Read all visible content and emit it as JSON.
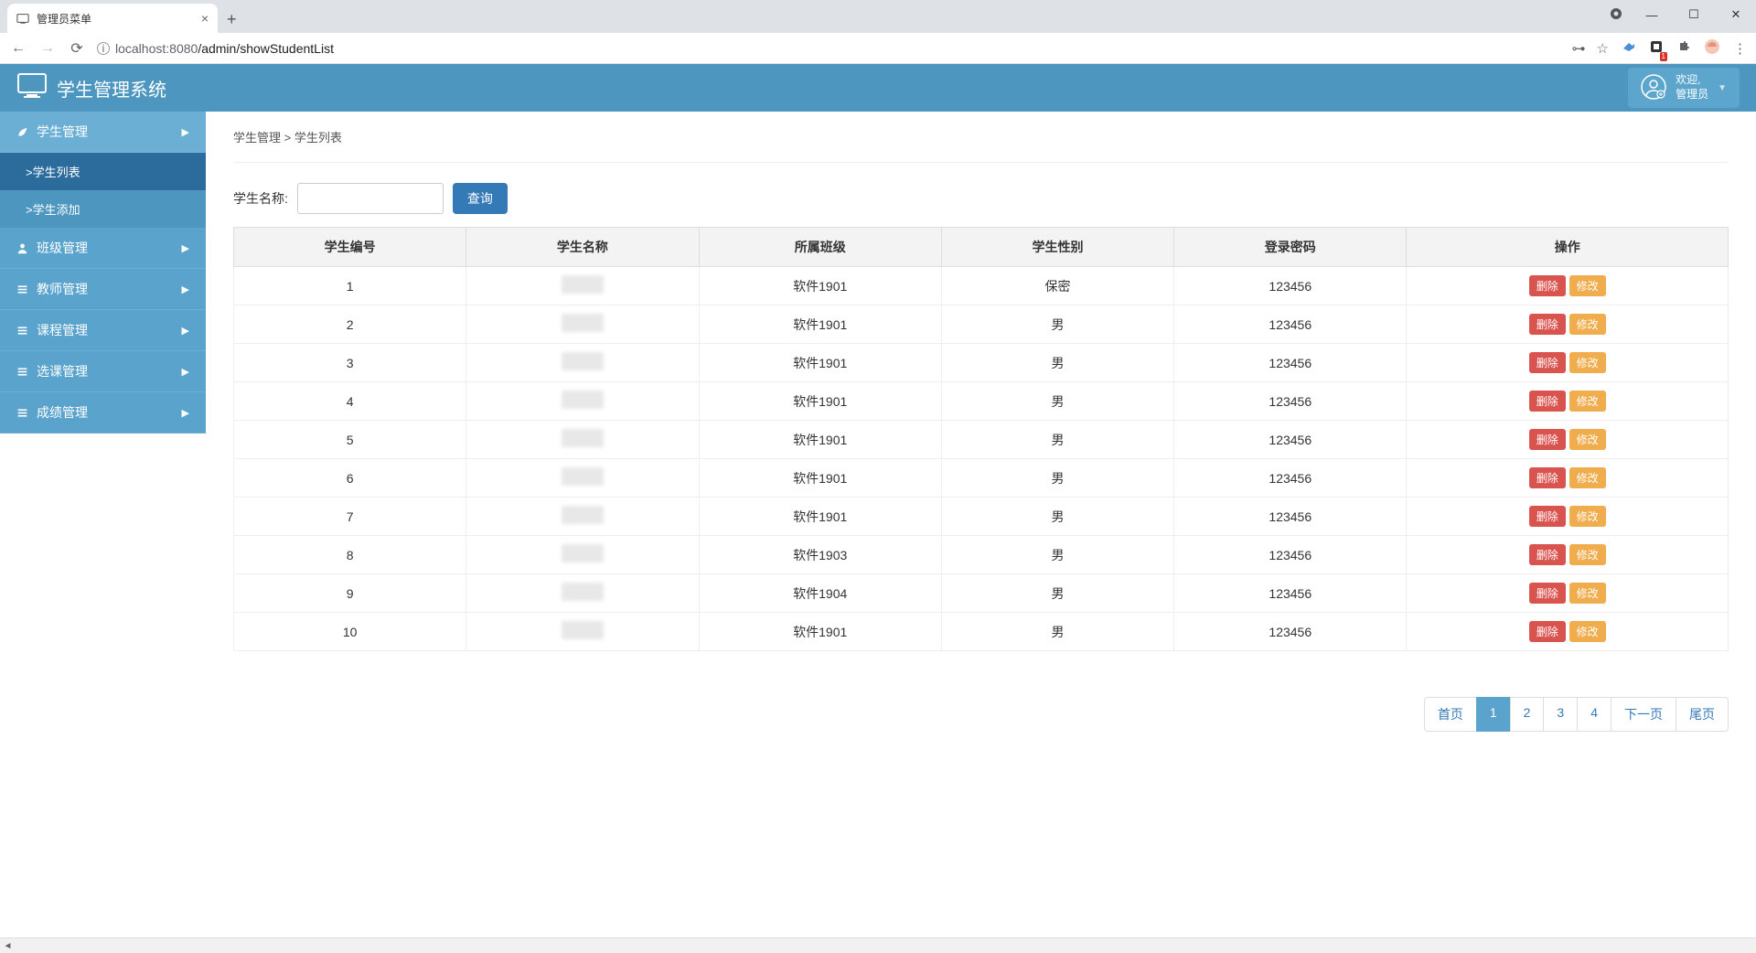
{
  "browser": {
    "tab_title": "管理员菜单",
    "url_host": "localhost",
    "url_port": ":8080",
    "url_path": "/admin/showStudentList"
  },
  "header": {
    "app_title": "学生管理系统",
    "welcome": "欢迎,",
    "user_role": "管理员"
  },
  "sidebar": {
    "items": [
      {
        "label": "学生管理",
        "expanded": true,
        "icon": "leaf"
      },
      {
        "label": "班级管理",
        "expanded": false,
        "icon": "user"
      },
      {
        "label": "教师管理",
        "expanded": false,
        "icon": "list"
      },
      {
        "label": "课程管理",
        "expanded": false,
        "icon": "list"
      },
      {
        "label": "选课管理",
        "expanded": false,
        "icon": "list"
      },
      {
        "label": "成绩管理",
        "expanded": false,
        "icon": "list"
      }
    ],
    "sub_items": [
      {
        "label": ">学生列表",
        "active": true
      },
      {
        "label": ">学生添加",
        "active": false
      }
    ]
  },
  "breadcrumb": {
    "parent": "学生管理",
    "sep": " > ",
    "current": "学生列表"
  },
  "search": {
    "label": "学生名称:",
    "button": "查询"
  },
  "table": {
    "columns": [
      "学生编号",
      "学生名称",
      "所属班级",
      "学生性别",
      "登录密码",
      "操作"
    ],
    "action_delete": "删除",
    "action_edit": "修改",
    "rows": [
      {
        "id": "1",
        "name": "",
        "class": "软件1901",
        "gender": "保密",
        "password": "123456"
      },
      {
        "id": "2",
        "name": "",
        "class": "软件1901",
        "gender": "男",
        "password": "123456"
      },
      {
        "id": "3",
        "name": "",
        "class": "软件1901",
        "gender": "男",
        "password": "123456"
      },
      {
        "id": "4",
        "name": "",
        "class": "软件1901",
        "gender": "男",
        "password": "123456"
      },
      {
        "id": "5",
        "name": "",
        "class": "软件1901",
        "gender": "男",
        "password": "123456"
      },
      {
        "id": "6",
        "name": "",
        "class": "软件1901",
        "gender": "男",
        "password": "123456"
      },
      {
        "id": "7",
        "name": "",
        "class": "软件1901",
        "gender": "男",
        "password": "123456"
      },
      {
        "id": "8",
        "name": "",
        "class": "软件1903",
        "gender": "男",
        "password": "123456"
      },
      {
        "id": "9",
        "name": "",
        "class": "软件1904",
        "gender": "男",
        "password": "123456"
      },
      {
        "id": "10",
        "name": "",
        "class": "软件1901",
        "gender": "男",
        "password": "123456"
      }
    ]
  },
  "pagination": {
    "first": "首页",
    "pages": [
      "1",
      "2",
      "3",
      "4"
    ],
    "active_index": 0,
    "next": "下一页",
    "last": "尾页"
  },
  "colors": {
    "header_bg": "#4c96c0",
    "sidebar_item": "#5aa3cc",
    "sidebar_sub_active": "#2c6c9c",
    "btn_primary": "#337ab7",
    "btn_danger": "#d9534f",
    "btn_warning": "#f0ad4e"
  }
}
